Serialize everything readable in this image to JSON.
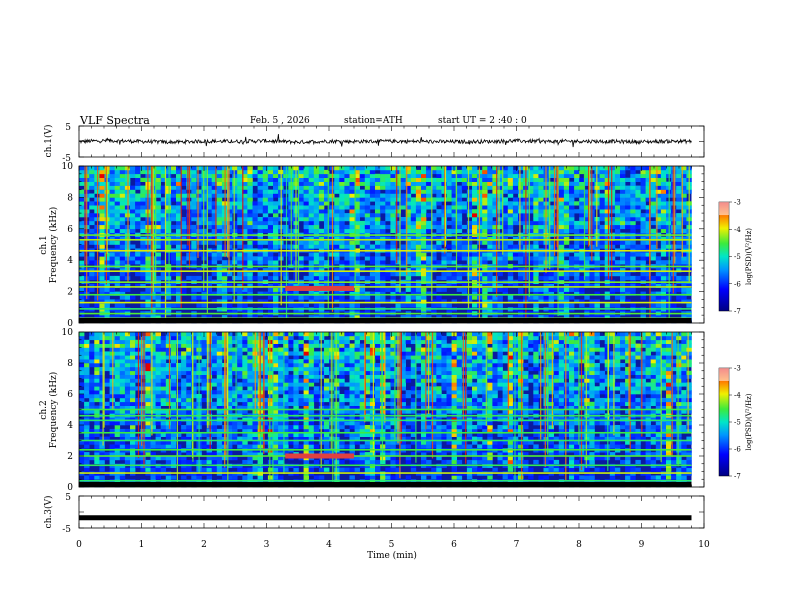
{
  "header": {
    "title": "VLF  Spectra",
    "date": "Feb. 5  , 2026",
    "station": "station=ATH",
    "start": "start  UT  =   2  :40 : 0"
  },
  "chart_data": [
    {
      "type": "line",
      "panel": "ch1-waveform",
      "ylabel": "ch.1(V)",
      "ylim": [
        -5,
        5
      ],
      "yticks": [
        "5",
        "-5"
      ],
      "xlim": [
        0,
        10
      ],
      "series": [
        {
          "x": [
            0,
            0.5,
            1,
            1.5,
            2,
            2.5,
            3,
            3.5,
            4,
            4.5,
            5,
            5.5,
            6,
            6.5,
            7,
            7.5,
            8,
            8.5,
            9,
            9.5,
            9.8
          ],
          "values": [
            0,
            0.3,
            0,
            -0.2,
            0.1,
            0,
            0.2,
            -0.2,
            0.1,
            0,
            0.1,
            0,
            -0.1,
            0,
            0.2,
            0,
            0.1,
            0,
            -0.1,
            0.1,
            0
          ]
        }
      ]
    },
    {
      "type": "heatmap",
      "panel": "ch1-spectrogram",
      "ylabel": "ch.1\nFrequency (kHz)",
      "ylim": [
        0,
        10
      ],
      "yticks": [
        "10",
        "8",
        "6",
        "4",
        "2",
        "0"
      ],
      "xlim": [
        0,
        10
      ],
      "colorbar": {
        "label": "log(PSD)(V²/Hz)",
        "range": [
          -7,
          -3
        ],
        "ticks": [
          "-3",
          "-4",
          "-5",
          "-6",
          "-7"
        ]
      },
      "bands_khz": [
        0.3,
        0.6,
        0.9,
        1.3,
        1.8,
        2.3,
        2.6,
        3.3,
        3.6,
        4.6,
        5.3,
        5.6
      ],
      "event": {
        "x": [
          3.3,
          4.4
        ],
        "freq_khz": 2.2
      }
    },
    {
      "type": "heatmap",
      "panel": "ch2-spectrogram",
      "ylabel": "ch.2\nFrequency (kHz)",
      "ylim": [
        0,
        10
      ],
      "yticks": [
        "10",
        "8",
        "6",
        "4",
        "2",
        "0"
      ],
      "xlim": [
        0,
        10
      ],
      "colorbar": {
        "label": "log(PSD)(V²/Hz)",
        "range": [
          -7,
          -3
        ],
        "ticks": [
          "-3",
          "-4",
          "-5",
          "-6",
          "-7"
        ]
      },
      "bands_khz": [
        0.4,
        0.9,
        1.4,
        2.0,
        2.4,
        3.0,
        3.5,
        4.3,
        4.6,
        5.0
      ],
      "event": {
        "x": [
          3.3,
          4.4
        ],
        "freq_khz": 2.0
      }
    },
    {
      "type": "line",
      "panel": "ch3-waveform",
      "ylabel": "ch.3(V)",
      "ylim": [
        -5,
        5
      ],
      "yticks": [
        "5",
        "-5"
      ],
      "xlim": [
        0,
        10
      ],
      "series": [
        {
          "x": [
            0,
            9.8
          ],
          "values": [
            -1.8,
            -1.8
          ]
        }
      ]
    }
  ],
  "xaxis": {
    "label": "Time  (min)",
    "ticks": [
      "0",
      "1",
      "2",
      "3",
      "4",
      "5",
      "6",
      "7",
      "8",
      "9",
      "10"
    ]
  },
  "colors": {
    "spec_low": "#000099",
    "spec_mid": "#00dd88",
    "spec_high": "#ff2200"
  }
}
